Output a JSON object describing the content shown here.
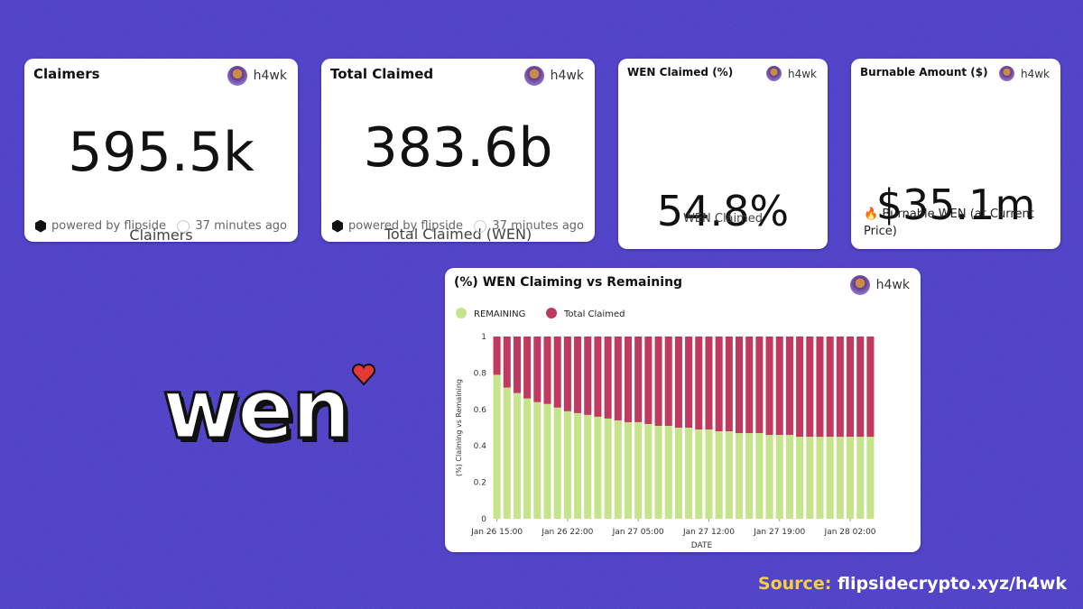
{
  "cards": [
    {
      "title": "Claimers",
      "author": "h4wk",
      "value": "595.5k",
      "label": "Claimers",
      "footer": "powered by flipside",
      "time": "37 minutes ago"
    },
    {
      "title": "Total Claimed",
      "author": "h4wk",
      "value": "383.6b",
      "label": "Total Claimed (WEN)",
      "footer": "powered by flipside",
      "time": "37 minutes ago"
    },
    {
      "title": "WEN Claimed (%)",
      "author": "h4wk",
      "value": "54.8%",
      "label": "WEN Claimed"
    },
    {
      "title": "Burnable Amount ($)",
      "author": "h4wk",
      "value": "$35.1m",
      "label": "🔥 Burnable WEN (at Current Price)"
    }
  ],
  "chart_author": "h4wk",
  "logo": "wen",
  "source": {
    "prefix": "Source:",
    "url": "flipsidecrypto.xyz/h4wk"
  },
  "chart_data": {
    "type": "stacked_bar",
    "title": "(%) WEN Claiming vs Remaining",
    "x_label": "DATE",
    "y_label": "(%) Claiming vs Remaining",
    "categories": [
      "Jan 26 15:00",
      null,
      null,
      null,
      null,
      null,
      null,
      "Jan 26 22:00",
      null,
      null,
      null,
      null,
      null,
      null,
      "Jan 27 05:00",
      null,
      null,
      null,
      null,
      null,
      null,
      "Jan 27 12:00",
      null,
      null,
      null,
      null,
      null,
      null,
      "Jan 27 19:00",
      null,
      null,
      null,
      null,
      null,
      null,
      "Jan 28 02:00",
      null,
      null
    ],
    "series": [
      {
        "name": "REMAINING",
        "color": "#c6e48b",
        "values": [
          0.79,
          0.72,
          0.69,
          0.66,
          0.64,
          0.63,
          0.61,
          0.59,
          0.58,
          0.57,
          0.56,
          0.55,
          0.54,
          0.53,
          0.53,
          0.52,
          0.51,
          0.51,
          0.5,
          0.5,
          0.49,
          0.49,
          0.48,
          0.48,
          0.47,
          0.47,
          0.47,
          0.46,
          0.46,
          0.46,
          0.45,
          0.45,
          0.45,
          0.45,
          0.45,
          0.45,
          0.45,
          0.45
        ]
      },
      {
        "name": "Total Claimed",
        "color": "#c0395e",
        "values": [
          0.21,
          0.28,
          0.31,
          0.34,
          0.36,
          0.37,
          0.39,
          0.41,
          0.42,
          0.43,
          0.44,
          0.45,
          0.46,
          0.47,
          0.47,
          0.48,
          0.49,
          0.49,
          0.5,
          0.5,
          0.51,
          0.51,
          0.52,
          0.52,
          0.53,
          0.53,
          0.53,
          0.54,
          0.54,
          0.54,
          0.55,
          0.55,
          0.55,
          0.55,
          0.55,
          0.55,
          0.55,
          0.55
        ]
      }
    ],
    "ylim": [
      0,
      1
    ],
    "yticks": [
      0,
      0.2,
      0.4,
      0.6,
      0.8,
      1
    ],
    "grid": false
  }
}
